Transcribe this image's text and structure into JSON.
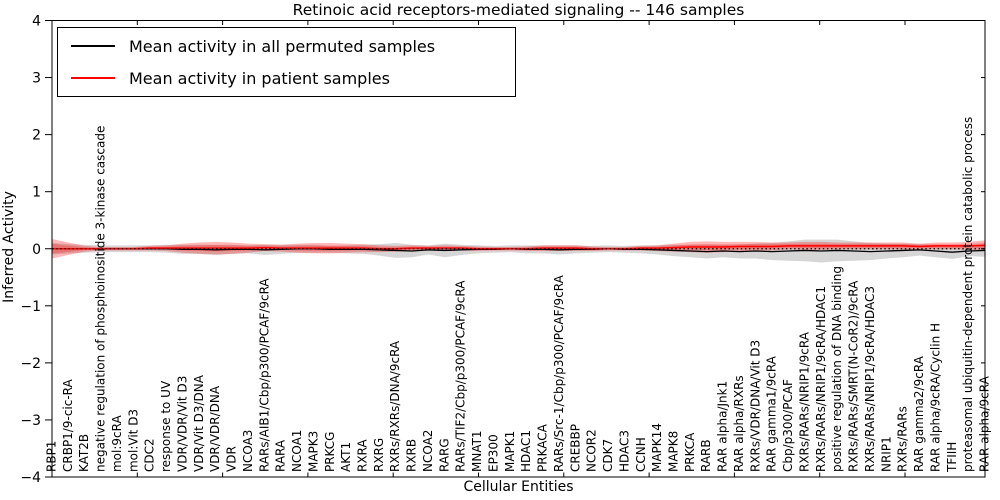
{
  "chart_data": {
    "type": "line",
    "title": "Retinoic acid receptors-mediated signaling -- 146 samples",
    "xlabel": "Cellular Entities",
    "ylabel": "Inferred Activity",
    "ylim": [
      -4,
      4
    ],
    "yticks": [
      -4,
      -3,
      -2,
      -1,
      0,
      1,
      2,
      3,
      4
    ],
    "ytick_labels": [
      "−4",
      "−3",
      "−2",
      "−1",
      "0",
      "1",
      "2",
      "3",
      "4"
    ],
    "grid": false,
    "baseline": {
      "value": 0,
      "style": "dotted",
      "color": "#000000"
    },
    "legend": {
      "position": "upper left",
      "entries": [
        {
          "label": "Mean activity in all permuted samples",
          "color": "#000000"
        },
        {
          "label": "Mean activity in patient samples",
          "color": "#ff0000"
        }
      ]
    },
    "categories": [
      "RBP1",
      "CRBP1/9-cic-RA",
      "KAT2B",
      "negative regulation of phosphoinositide 3-kinase cascade",
      "mol:9cRA",
      "mol:Vit D3",
      "CDC2",
      "response to UV",
      "VDR/VDR/Vit D3",
      "VDR/Vit D3/DNA",
      "VDR/VDR/DNA",
      "VDR",
      "NCOA3",
      "RARs/AIB1/Cbp/p300/PCAF/9cRA",
      "RARA",
      "NCOA1",
      "MAPK3",
      "PRKCG",
      "AKT1",
      "RXRA",
      "RXRG",
      "RXRs/RXRs/DNA/9cRA",
      "RXRB",
      "NCOA2",
      "RARG",
      "RARs/TIF2/Cbp/p300/PCAF/9cRA",
      "MNAT1",
      "EP300",
      "MAPK1",
      "HDAC1",
      "PRKACA",
      "RARs/Src-1/Cbp/p300/PCAF/9cRA",
      "CREBBP",
      "NCOR2",
      "CDK7",
      "HDAC3",
      "CCNH",
      "MAPK14",
      "MAPK8",
      "PRKCA",
      "RARB",
      "RAR alpha/Jnk1",
      "RAR alpha/RXRs",
      "RXRs/VDR/DNA/Vit D3",
      "RAR gamma1/9cRA",
      "Cbp/p300/PCAF",
      "RXRs/RARs/NRIP1/9cRA",
      "RXRs/RARs/NRIP1/9cRA/HDAC1",
      "positive regulation of DNA binding",
      "RXRs/RARs/SMRT(N-CoR2)/9cRA",
      "RXRs/RARs/NRIP1/9cRA/HDAC3",
      "NRIP1",
      "RXRs/RARs",
      "RAR gamma2/9cRA",
      "RAR alpha/9cRA/Cyclin H",
      "TFIIH",
      "proteasomal ubiquitin-dependent protein catabolic process",
      "RAR alpha/9cRA"
    ],
    "series": [
      {
        "name": "Mean activity in all permuted samples",
        "color": "#000000",
        "band_opacity": 0.16,
        "mean": [
          0.0,
          0.0,
          0.0,
          0.0,
          0.0,
          0.0,
          0.0,
          0.0,
          -0.01,
          -0.01,
          -0.02,
          -0.01,
          -0.01,
          -0.02,
          -0.01,
          0.0,
          0.0,
          -0.01,
          -0.01,
          -0.01,
          -0.02,
          -0.03,
          -0.04,
          -0.02,
          -0.03,
          -0.02,
          -0.01,
          -0.01,
          0.0,
          -0.01,
          -0.01,
          -0.02,
          -0.01,
          -0.01,
          0.0,
          -0.01,
          -0.01,
          -0.02,
          -0.03,
          -0.04,
          -0.05,
          -0.04,
          -0.05,
          -0.04,
          -0.05,
          -0.04,
          -0.03,
          -0.04,
          -0.03,
          -0.04,
          -0.05,
          -0.04,
          -0.03,
          -0.02,
          -0.04,
          -0.06,
          -0.04,
          -0.03
        ],
        "std": [
          0.1,
          0.08,
          0.07,
          0.06,
          0.06,
          0.06,
          0.06,
          0.07,
          0.08,
          0.08,
          0.09,
          0.08,
          0.07,
          0.09,
          0.08,
          0.07,
          0.07,
          0.06,
          0.07,
          0.08,
          0.1,
          0.13,
          0.11,
          0.08,
          0.12,
          0.09,
          0.07,
          0.06,
          0.06,
          0.07,
          0.07,
          0.08,
          0.07,
          0.06,
          0.06,
          0.06,
          0.07,
          0.08,
          0.1,
          0.11,
          0.12,
          0.11,
          0.12,
          0.13,
          0.15,
          0.17,
          0.19,
          0.2,
          0.19,
          0.17,
          0.15,
          0.13,
          0.12,
          0.1,
          0.11,
          0.12,
          0.09,
          0.11
        ]
      },
      {
        "name": "Mean activity in patient samples",
        "color": "#ff0000",
        "band_opacity": 0.28,
        "mean": [
          0.0,
          0.0,
          0.0,
          0.0,
          0.0,
          0.0,
          0.01,
          0.01,
          0.01,
          0.01,
          0.01,
          0.01,
          0.01,
          0.02,
          0.01,
          0.01,
          0.01,
          0.01,
          0.01,
          0.01,
          0.0,
          0.0,
          0.01,
          0.01,
          0.01,
          0.01,
          0.0,
          0.0,
          0.0,
          0.0,
          0.01,
          0.01,
          0.01,
          0.0,
          0.0,
          0.0,
          0.01,
          0.01,
          0.02,
          0.03,
          0.03,
          0.03,
          0.04,
          0.04,
          0.04,
          0.05,
          0.05,
          0.05,
          0.05,
          0.05,
          0.05,
          0.05,
          0.05,
          0.04,
          0.05,
          0.05,
          0.05,
          0.06
        ],
        "std": [
          0.17,
          0.11,
          0.05,
          0.03,
          0.03,
          0.03,
          0.04,
          0.05,
          0.08,
          0.1,
          0.11,
          0.1,
          0.08,
          0.06,
          0.06,
          0.08,
          0.09,
          0.09,
          0.08,
          0.07,
          0.06,
          0.05,
          0.05,
          0.04,
          0.05,
          0.04,
          0.04,
          0.03,
          0.03,
          0.04,
          0.05,
          0.05,
          0.05,
          0.04,
          0.03,
          0.03,
          0.04,
          0.05,
          0.07,
          0.09,
          0.1,
          0.09,
          0.08,
          0.08,
          0.07,
          0.06,
          0.07,
          0.07,
          0.06,
          0.06,
          0.06,
          0.06,
          0.06,
          0.05,
          0.06,
          0.06,
          0.07,
          0.09
        ]
      }
    ]
  }
}
